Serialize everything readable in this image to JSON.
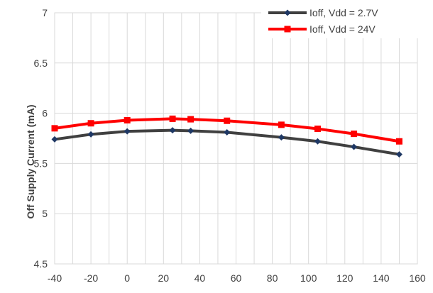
{
  "chart_data": {
    "type": "line",
    "title": "",
    "xlabel": "",
    "ylabel": "Off Supply Current  (mA)",
    "xlim": [
      -40,
      160
    ],
    "ylim": [
      4.5,
      7
    ],
    "x_ticks": [
      "-40",
      "-20",
      "0",
      "20",
      "40",
      "60",
      "80",
      "100",
      "120",
      "140",
      "160"
    ],
    "y_ticks": [
      "4.5",
      "5",
      "5.5",
      "6",
      "6.5",
      "7"
    ],
    "grid": true,
    "legend_position": "top-right",
    "series": [
      {
        "name": "Ioff, Vdd = 2.7V",
        "color": "#404040",
        "marker": "diamond",
        "marker_color": "#1f3864",
        "x": [
          -40,
          -20,
          0,
          25,
          35,
          55,
          85,
          105,
          125,
          150
        ],
        "values": [
          5.74,
          5.79,
          5.82,
          5.83,
          5.825,
          5.81,
          5.76,
          5.72,
          5.665,
          5.59
        ]
      },
      {
        "name": "Ioff, Vdd = 24V",
        "color": "#ff0000",
        "marker": "square",
        "marker_color": "#ff0000",
        "x": [
          -40,
          -20,
          0,
          25,
          35,
          55,
          85,
          105,
          125,
          150
        ],
        "values": [
          5.85,
          5.9,
          5.93,
          5.945,
          5.94,
          5.925,
          5.885,
          5.845,
          5.795,
          5.72
        ]
      }
    ]
  }
}
